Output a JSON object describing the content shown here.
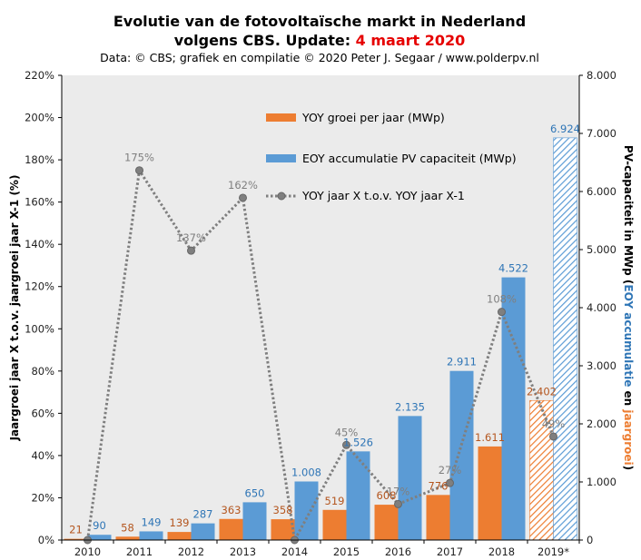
{
  "title": {
    "line1": "Evolutie van de fotovoltaïsche markt in Nederland",
    "line2_prefix": "volgens CBS. Update: ",
    "line2_highlight": "4 maart 2020",
    "line3": "Data: © CBS; grafiek en compilatie © 2020 Peter J. Segaar / www.polderpv.nl"
  },
  "colors": {
    "orange": "#ED7D31",
    "blue": "#5B9BD5",
    "line": "#7F7F7F",
    "plot_bg": "#EBEBEB",
    "orange_label": "#B4561F",
    "blue_label": "#2E75B6",
    "pct_label": "#7F7F7F",
    "highlight": "#E60000"
  },
  "left_axis": {
    "label": "Jaargroei jaar X t.o.v. jaargroei jaar X-1 (%)",
    "ticks": [
      "0%",
      "20%",
      "40%",
      "60%",
      "80%",
      "100%",
      "120%",
      "140%",
      "160%",
      "180%",
      "200%",
      "220%"
    ]
  },
  "right_axis": {
    "label_black": "PV-capaciteit in MWp (",
    "label_blue": "EOY accumulatie",
    "label_mid": " en ",
    "label_orange": "jaargroei",
    "label_end": ")",
    "ticks": [
      "0",
      "1.000",
      "2.000",
      "3.000",
      "4.000",
      "5.000",
      "6.000",
      "7.000",
      "8.000"
    ]
  },
  "legend": [
    {
      "type": "bar",
      "color": "orange",
      "label": "YOY groei per jaar (MWp)"
    },
    {
      "type": "bar",
      "color": "blue",
      "label": "EOY accumulatie PV capaciteit (MWp)"
    },
    {
      "type": "line",
      "color": "line",
      "label": "YOY jaar X t.o.v. YOY jaar X-1"
    }
  ],
  "chart_data": {
    "type": "bar",
    "categories": [
      "2010",
      "2011",
      "2012",
      "2013",
      "2014",
      "2015",
      "2016",
      "2017",
      "2018",
      "2019*"
    ],
    "series": [
      {
        "name": "YOY groei per jaar (MWp)",
        "axis": "right",
        "values": [
          21,
          58,
          139,
          363,
          358,
          519,
          608,
          776,
          1611,
          2402
        ],
        "labels": [
          "21",
          "58",
          "139",
          "363",
          "358",
          "519",
          "608",
          "776",
          "1.611",
          "2.402"
        ],
        "hatched_last": true
      },
      {
        "name": "EOY accumulatie PV capaciteit (MWp)",
        "axis": "right",
        "values": [
          90,
          149,
          287,
          650,
          1008,
          1526,
          2135,
          2911,
          4522,
          6924
        ],
        "labels": [
          "90",
          "149",
          "287",
          "650",
          "1.008",
          "1.526",
          "2.135",
          "2.911",
          "4.522",
          "6.924"
        ],
        "hatched_last": true
      },
      {
        "name": "YOY jaar X t.o.v. YOY jaar X-1",
        "axis": "left",
        "type": "line",
        "values": [
          0,
          175,
          137,
          162,
          0,
          45,
          17,
          27,
          108,
          49
        ],
        "labels": [
          "",
          "175%",
          "137%",
          "162%",
          "",
          "45%",
          "17%",
          "27%",
          "108%",
          "49%"
        ]
      }
    ],
    "ylim_left": [
      0,
      220
    ],
    "ylim_right": [
      0,
      8000
    ],
    "grid": false,
    "legend_position": "top-center"
  }
}
